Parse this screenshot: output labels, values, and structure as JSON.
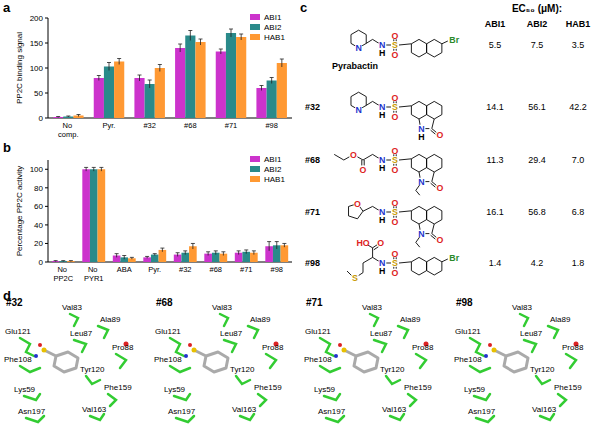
{
  "chart_data": [
    {
      "type": "bar",
      "y_label": "PP2C binding signal",
      "categories": [
        "No comp.",
        "Pyr.",
        "#32",
        "#68",
        "#71",
        "#98"
      ],
      "series": [
        {
          "name": "ABI1",
          "color": "#cc33cc",
          "values": [
            2,
            80,
            80,
            140,
            133,
            60
          ],
          "errors": [
            1,
            5,
            6,
            8,
            5,
            5
          ]
        },
        {
          "name": "ABI2",
          "color": "#2a8a8a",
          "values": [
            3,
            103,
            68,
            165,
            170,
            75
          ],
          "errors": [
            1,
            8,
            8,
            10,
            8,
            6
          ]
        },
        {
          "name": "HAB1",
          "color": "#ff9933",
          "values": [
            5,
            113,
            100,
            152,
            162,
            110
          ],
          "errors": [
            2,
            6,
            7,
            6,
            6,
            8
          ]
        }
      ],
      "ylim": [
        0,
        200
      ],
      "yticks": [
        0,
        50,
        100,
        150,
        200
      ],
      "grid": false,
      "legend": "top-right"
    },
    {
      "type": "bar",
      "y_label": "Percentage PP2C activity",
      "categories": [
        "No PP2C",
        "No PYR1",
        "ABA",
        "Pyr.",
        "#32",
        "#68",
        "#71",
        "#98"
      ],
      "series": [
        {
          "name": "ABI1",
          "color": "#cc33cc",
          "values": [
            1,
            100,
            7,
            5,
            8,
            9,
            10,
            17
          ],
          "errors": [
            0.5,
            2,
            2,
            1,
            2,
            2,
            2,
            5
          ]
        },
        {
          "name": "ABI2",
          "color": "#2a8a8a",
          "values": [
            1,
            100,
            5,
            8,
            10,
            10,
            11,
            18
          ],
          "errors": [
            0.5,
            2,
            2,
            1,
            2,
            2,
            2,
            4
          ]
        },
        {
          "name": "HAB1",
          "color": "#ff9933",
          "values": [
            1,
            100,
            4,
            13,
            17,
            9,
            10,
            18
          ],
          "errors": [
            0.5,
            2,
            1,
            2,
            3,
            2,
            2,
            2
          ]
        }
      ],
      "ylim": [
        0,
        110
      ],
      "yticks": [
        0,
        20,
        40,
        60,
        80,
        100
      ],
      "grid": false,
      "legend": "top-right"
    }
  ],
  "panel_labels": [
    "a",
    "b",
    "c",
    "d"
  ],
  "structures": [
    {
      "label": "Pyrabactin",
      "atoms": [
        "N",
        "N",
        "H",
        "S",
        "O",
        "O",
        "Br"
      ]
    },
    {
      "label": "#32",
      "atoms": [
        "N",
        "N",
        "H",
        "S",
        "O",
        "O",
        "N",
        "H",
        "O"
      ]
    },
    {
      "label": "#68",
      "atoms": [
        "O",
        "O",
        "N",
        "H",
        "S",
        "O",
        "O",
        "N",
        "O"
      ]
    },
    {
      "label": "#71",
      "atoms": [
        "O",
        "N",
        "H",
        "S",
        "O",
        "O",
        "N",
        "O"
      ]
    },
    {
      "label": "#98",
      "atoms": [
        "HO",
        "O",
        "N",
        "H",
        "S",
        "O",
        "O",
        "S",
        "Br"
      ]
    }
  ],
  "ec50_table": {
    "title": "EC₅₀ (μM):",
    "columns": [
      "ABI1",
      "ABI2",
      "HAB1"
    ],
    "rows": [
      [
        "5.5",
        "7.5",
        "3.5"
      ],
      [
        "14.1",
        "56.1",
        "42.2"
      ],
      [
        "11.3",
        "29.4",
        "7.0"
      ],
      [
        "16.1",
        "56.8",
        "6.8"
      ],
      [
        "1.4",
        "4.2",
        "1.8"
      ]
    ]
  },
  "structure_views": [
    {
      "title": "#32",
      "residues": [
        "Val83",
        "Ala89",
        "Leu87",
        "Glu121",
        "Pro88",
        "Phe108",
        "Tyr120",
        "Phe159",
        "Lys59",
        "Val163",
        "Asn197"
      ]
    },
    {
      "title": "#68",
      "residues": [
        "Val83",
        "Ala89",
        "Leu87",
        "Glu121",
        "Pro88",
        "Phe108",
        "Tyr120",
        "Phe159",
        "Lys59",
        "Val163",
        "Asn197"
      ]
    },
    {
      "title": "#71",
      "residues": [
        "Val83",
        "Ala89",
        "Leu87",
        "Glu121",
        "Pro88",
        "Phe108",
        "Tyr120",
        "Phe159",
        "Lys59",
        "Val163",
        "Asn197"
      ]
    },
    {
      "title": "#98",
      "residues": [
        "Val83",
        "Ala89",
        "Leu87",
        "Glu121",
        "Pro88",
        "Phe108",
        "Tyr120",
        "Phe159",
        "Lys59",
        "Val163",
        "Asn197"
      ]
    }
  ]
}
